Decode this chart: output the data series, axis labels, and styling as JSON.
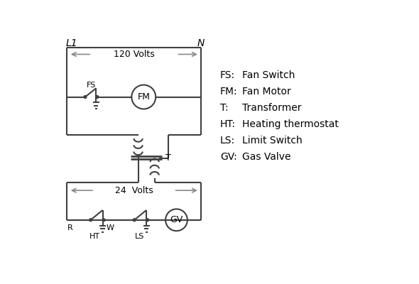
{
  "background_color": "#ffffff",
  "line_color": "#404040",
  "arrow_color": "#888888",
  "text_color": "#000000",
  "legend_items": [
    [
      "FS:",
      "Fan Switch"
    ],
    [
      "FM:",
      "Fan Motor"
    ],
    [
      "T:",
      "Transformer"
    ],
    [
      "HT:",
      "Heating thermostat"
    ],
    [
      "LS:",
      "Limit Switch"
    ],
    [
      "GV:",
      "Gas Valve"
    ]
  ],
  "L1_label": "L1",
  "N_label": "N",
  "volts_120": "120 Volts",
  "volts_24": "24  Volts",
  "FS_label": "FS",
  "FM_label": "FM",
  "T_label": "T",
  "R_label": "R",
  "W_label": "W",
  "HT_label": "HT",
  "LS_label": "LS",
  "GV_label": "GV"
}
